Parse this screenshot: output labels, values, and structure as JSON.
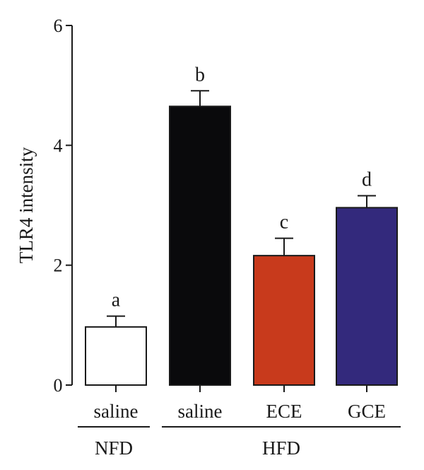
{
  "chart_data": {
    "type": "bar",
    "ylabel": "TLR4 intensity",
    "ylim": [
      0,
      6
    ],
    "yticks": [
      0,
      2,
      4,
      6
    ],
    "categories": [
      "saline",
      "saline",
      "ECE",
      "GCE"
    ],
    "groups": [
      {
        "label": "NFD",
        "members": [
          0
        ]
      },
      {
        "label": "HFD",
        "members": [
          1,
          2,
          3
        ]
      }
    ],
    "values": [
      0.97,
      4.65,
      2.16,
      2.96
    ],
    "errors": [
      0.18,
      0.26,
      0.29,
      0.2
    ],
    "significance": [
      "a",
      "b",
      "c",
      "d"
    ],
    "colors": [
      "#ffffff",
      "#0a0a0c",
      "#c83a1c",
      "#33297c"
    ]
  }
}
